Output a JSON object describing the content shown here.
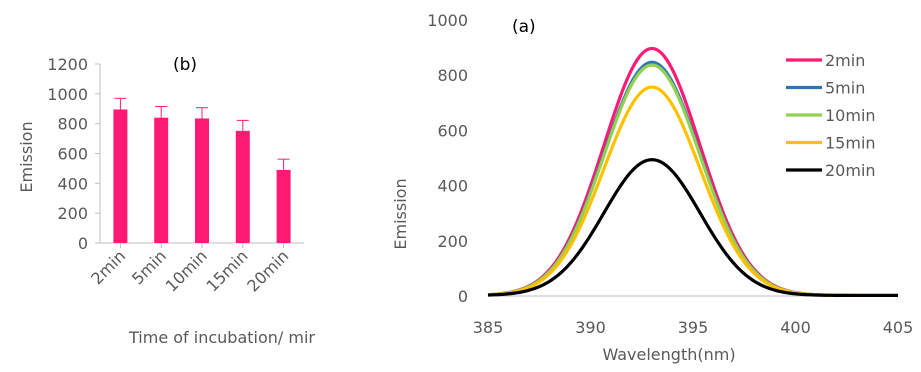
{
  "chart_data": [
    {
      "type": "bar",
      "title": "(b)",
      "xlabel": "Time of incubation/ mir",
      "ylabel": "Emission",
      "ylim": [
        0,
        1200
      ],
      "yticks": [
        "0",
        "200",
        "400",
        "600",
        "800",
        "1000",
        "1200"
      ],
      "categories": [
        "2min",
        "5min",
        "10min",
        "15min",
        "20min"
      ],
      "values": [
        895,
        840,
        835,
        752,
        490
      ],
      "errors": [
        75,
        75,
        72,
        70,
        72
      ],
      "bar_color": "#ff1a73",
      "error_color": "#ff1a73",
      "grid": false
    },
    {
      "type": "line",
      "title": "(a)",
      "xlabel": "Wavelength(nm)",
      "ylabel": "Emission",
      "xlim": [
        385,
        405
      ],
      "ylim": [
        0,
        1000
      ],
      "xticks": [
        "385",
        "390",
        "395",
        "400",
        "405"
      ],
      "yticks": [
        "0",
        "200",
        "400",
        "600",
        "800",
        "1000"
      ],
      "legend_position": "top-right",
      "grid": false,
      "peak_x": 393,
      "series": [
        {
          "name": "2min",
          "color": "#ff1a73",
          "peak": 895
        },
        {
          "name": "5min",
          "color": "#2e75b6",
          "peak": 845
        },
        {
          "name": "10min",
          "color": "#92d050",
          "peak": 835
        },
        {
          "name": "15min",
          "color": "#ffc000",
          "peak": 755
        },
        {
          "name": "20min",
          "color": "#000000",
          "peak": 492
        }
      ]
    }
  ]
}
